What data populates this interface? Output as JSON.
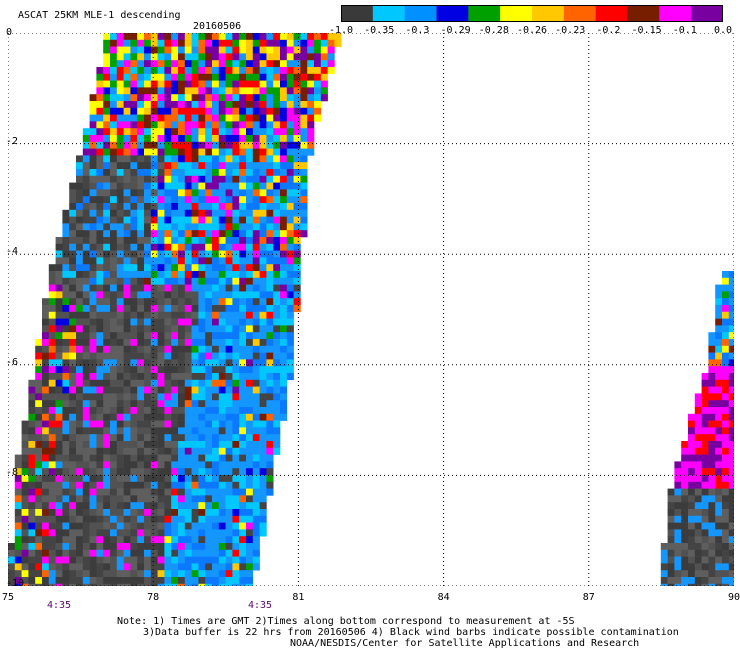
{
  "header": {
    "title": "ASCAT 25KM MLE-1 descending",
    "date": "20160506"
  },
  "colorbar": {
    "colors": [
      "#3a3a3a",
      "#00c8ff",
      "#0090ff",
      "#0000e0",
      "#00a000",
      "#ffff00",
      "#ffc800",
      "#ff6400",
      "#ff0000",
      "#781e00",
      "#ff00ff",
      "#7800a0"
    ],
    "labels": [
      "-1.0",
      "-0.35",
      "-0.3",
      "-0.29",
      "-0.28",
      "-0.26",
      "-0.23",
      "-0.2",
      "-0.15",
      "-0.1",
      "0.0"
    ]
  },
  "axes": {
    "x_ticks": [
      "75",
      "78",
      "81",
      "84",
      "87",
      "90"
    ],
    "y_ticks": [
      "0",
      "-2",
      "-4",
      "-6",
      "-8",
      "-10"
    ],
    "time_labels": [
      "4:35",
      "4:35"
    ]
  },
  "notes": {
    "line1": "Note: 1) Times are GMT 2)Times along bottom correspond to measurement at -5S",
    "line2": "3)Data buffer is 22 hrs from 20160506 4) Black wind barbs indicate possible contamination",
    "line3": "NOAA/NESDIS/Center for Satellite Applications and Research"
  },
  "swaths": {
    "lon_range": [
      75,
      90
    ],
    "lat_range": [
      -10,
      0
    ],
    "left_swath_edges": [
      [
        0,
        77.1,
        81.8
      ],
      [
        -2,
        76.6,
        81.2
      ],
      [
        -4,
        76.0,
        81.0
      ],
      [
        -6,
        75.6,
        80.8
      ],
      [
        -8,
        75.2,
        80.4
      ],
      [
        -10,
        75.1,
        80.0
      ]
    ],
    "right_swath_edges": [
      [
        -4.2,
        89.8,
        90.0
      ],
      [
        -6,
        89.5,
        90.0
      ],
      [
        -8,
        88.8,
        90.0
      ],
      [
        -10,
        88.5,
        90.0
      ]
    ]
  }
}
